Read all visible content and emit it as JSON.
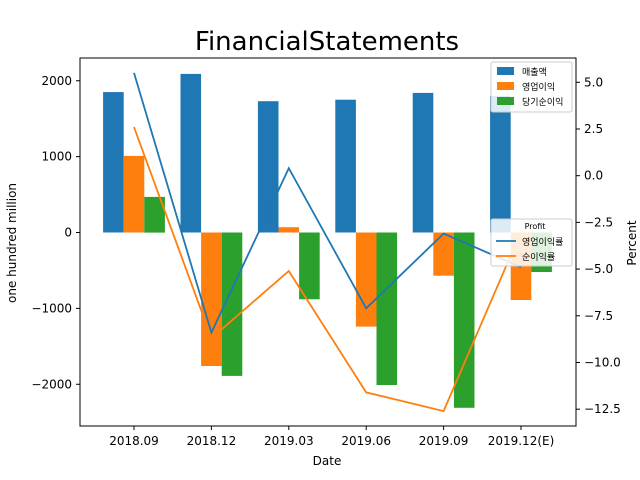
{
  "chart_data": {
    "type": "bar+line",
    "title": "FinancialStatements",
    "xlabel": "Date",
    "ylabel_left": "one hundred million",
    "ylabel_right": "Percent",
    "categories": [
      "2018.09",
      "2018.12",
      "2019.03",
      "2019.06",
      "2019.09",
      "2019.12(E)"
    ],
    "ylim_left": [
      -2550,
      2300
    ],
    "yticks_left": [
      -2000,
      -1000,
      0,
      1000,
      2000
    ],
    "ytick_labels_left": [
      "−2000",
      "−1000",
      "0",
      "1000",
      "2000"
    ],
    "ylim_right": [
      -13.4,
      6.3
    ],
    "yticks_right": [
      5.0,
      2.5,
      0.0,
      -2.5,
      -5.0,
      -7.5,
      -10.0,
      -12.5
    ],
    "ytick_labels_right": [
      "5.0",
      "2.5",
      "0.0",
      "−2.5",
      "−5.0",
      "−7.5",
      "−10.0",
      "−12.5"
    ],
    "bar_series": [
      {
        "name": "매출액",
        "color": "#1f77b4",
        "values": [
          1850,
          2090,
          1730,
          1750,
          1840,
          1800
        ]
      },
      {
        "name": "영업이익",
        "color": "#ff7f0e",
        "values": [
          1010,
          -1760,
          70,
          -1240,
          -570,
          -890
        ]
      },
      {
        "name": "당기순이익",
        "color": "#2ca02c",
        "values": [
          470,
          -1890,
          -880,
          -2010,
          -2310,
          -520
        ]
      }
    ],
    "line_series": [
      {
        "name": "영업이익률",
        "color": "#1f77b4",
        "values": [
          5.5,
          -8.4,
          0.4,
          -7.1,
          -3.1,
          -4.9
        ]
      },
      {
        "name": "순이익률",
        "color": "#ff7f0e",
        "values": [
          2.6,
          -8.7,
          -5.1,
          -11.6,
          -12.6,
          -3.0
        ]
      }
    ],
    "legend_bars_placement": "top-right",
    "legend_lines_title": "Profit",
    "legend_lines_placement": "center-right",
    "grid": false
  }
}
